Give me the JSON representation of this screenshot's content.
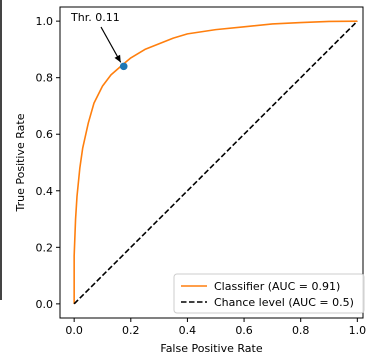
{
  "chart_data": {
    "type": "line",
    "xlabel": "False Positive Rate",
    "ylabel": "True Positive Rate",
    "xlim": [
      -0.05,
      1.02
    ],
    "ylim": [
      -0.05,
      1.05
    ],
    "xticks": [
      {
        "value": 0.0,
        "label": "0.0"
      },
      {
        "value": 0.2,
        "label": "0.2"
      },
      {
        "value": 0.4,
        "label": "0.4"
      },
      {
        "value": 0.6,
        "label": "0.6"
      },
      {
        "value": 0.8,
        "label": "0.8"
      },
      {
        "value": 1.0,
        "label": "1.0"
      }
    ],
    "yticks": [
      {
        "value": 0.0,
        "label": "0.0"
      },
      {
        "value": 0.2,
        "label": "0.2"
      },
      {
        "value": 0.4,
        "label": "0.4"
      },
      {
        "value": 0.6,
        "label": "0.6"
      },
      {
        "value": 0.8,
        "label": "0.8"
      },
      {
        "value": 1.0,
        "label": "1.0"
      }
    ],
    "grid": false,
    "legend_position": "lower-right",
    "series": [
      {
        "name": "Classifier (AUC = 0.91)",
        "color": "#ff7f0e",
        "dash": "solid",
        "x": [
          0.0,
          0.0,
          0.005,
          0.01,
          0.02,
          0.03,
          0.05,
          0.07,
          0.1,
          0.13,
          0.17,
          0.2,
          0.25,
          0.3,
          0.35,
          0.4,
          0.5,
          0.6,
          0.7,
          0.8,
          0.9,
          1.0
        ],
        "y": [
          0.0,
          0.17,
          0.3,
          0.38,
          0.48,
          0.55,
          0.64,
          0.71,
          0.77,
          0.81,
          0.845,
          0.87,
          0.9,
          0.92,
          0.94,
          0.955,
          0.97,
          0.98,
          0.99,
          0.995,
          0.999,
          1.0
        ]
      },
      {
        "name": "Chance level (AUC = 0.5)",
        "color": "#000000",
        "dash": "dashed",
        "x": [
          0.0,
          1.0
        ],
        "y": [
          0.0,
          1.0
        ]
      }
    ],
    "highlight_point": {
      "x": 0.175,
      "y": 0.84,
      "color": "#1f77b4"
    },
    "annotation": {
      "text": "Thr. 0.11",
      "x": 0.175,
      "y": 0.84
    }
  }
}
